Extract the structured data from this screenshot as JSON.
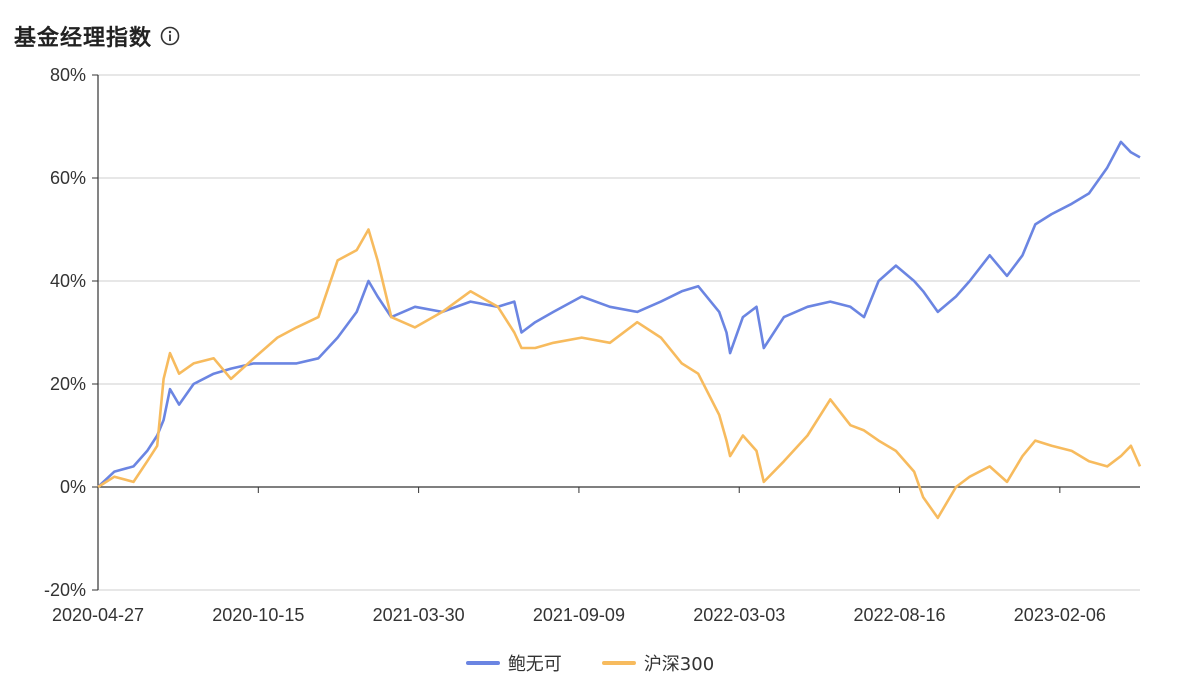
{
  "header": {
    "title": "基金经理指数"
  },
  "colors": {
    "series0": "#6b85e2",
    "series1": "#f7bb5e",
    "grid": "#cfcfcf",
    "axis": "#333333"
  },
  "chart_data": {
    "type": "line",
    "x_labels": [
      "2020-04-27",
      "2020-10-15",
      "2021-03-30",
      "2021-09-09",
      "2022-03-03",
      "2022-08-16",
      "2023-02-06"
    ],
    "y_ticks": [
      "80%",
      "60%",
      "40%",
      "20%",
      "0%",
      "-20%"
    ],
    "ylim": [
      -20,
      80
    ],
    "grid": true,
    "legend_position": "bottom-center",
    "x_domain": [
      "2020-04-27",
      "2023-06-15"
    ],
    "series": [
      {
        "name": "鲍无可",
        "color": "#6b85e2",
        "points": [
          [
            "2020-04-27",
            0
          ],
          [
            "2020-05-15",
            3
          ],
          [
            "2020-06-05",
            4
          ],
          [
            "2020-06-20",
            7
          ],
          [
            "2020-07-01",
            10
          ],
          [
            "2020-07-08",
            13
          ],
          [
            "2020-07-15",
            19
          ],
          [
            "2020-07-25",
            16
          ],
          [
            "2020-08-10",
            20
          ],
          [
            "2020-09-01",
            22
          ],
          [
            "2020-09-20",
            23
          ],
          [
            "2020-10-15",
            24
          ],
          [
            "2020-11-10",
            24
          ],
          [
            "2020-12-01",
            24
          ],
          [
            "2020-12-25",
            25
          ],
          [
            "2021-01-15",
            29
          ],
          [
            "2021-02-05",
            34
          ],
          [
            "2021-02-18",
            40
          ],
          [
            "2021-02-28",
            37
          ],
          [
            "2021-03-15",
            33
          ],
          [
            "2021-04-10",
            35
          ],
          [
            "2021-05-10",
            34
          ],
          [
            "2021-06-10",
            36
          ],
          [
            "2021-07-10",
            35
          ],
          [
            "2021-07-28",
            36
          ],
          [
            "2021-08-05",
            30
          ],
          [
            "2021-08-20",
            32
          ],
          [
            "2021-09-09",
            34
          ],
          [
            "2021-10-10",
            37
          ],
          [
            "2021-11-10",
            35
          ],
          [
            "2021-12-10",
            34
          ],
          [
            "2022-01-05",
            36
          ],
          [
            "2022-01-28",
            38
          ],
          [
            "2022-02-15",
            39
          ],
          [
            "2022-03-10",
            34
          ],
          [
            "2022-03-18",
            30
          ],
          [
            "2022-03-22",
            26
          ],
          [
            "2022-04-05",
            33
          ],
          [
            "2022-04-20",
            35
          ],
          [
            "2022-04-28",
            27
          ],
          [
            "2022-05-20",
            33
          ],
          [
            "2022-06-15",
            35
          ],
          [
            "2022-07-10",
            36
          ],
          [
            "2022-08-01",
            35
          ],
          [
            "2022-08-16",
            33
          ],
          [
            "2022-09-01",
            40
          ],
          [
            "2022-09-20",
            43
          ],
          [
            "2022-10-10",
            40
          ],
          [
            "2022-10-20",
            38
          ],
          [
            "2022-11-05",
            34
          ],
          [
            "2022-11-25",
            37
          ],
          [
            "2022-12-10",
            40
          ],
          [
            "2023-01-01",
            45
          ],
          [
            "2023-01-20",
            41
          ],
          [
            "2023-02-06",
            45
          ],
          [
            "2023-02-20",
            51
          ],
          [
            "2023-03-10",
            53
          ],
          [
            "2023-04-01",
            55
          ],
          [
            "2023-04-20",
            57
          ],
          [
            "2023-05-10",
            62
          ],
          [
            "2023-05-25",
            67
          ],
          [
            "2023-06-05",
            65
          ],
          [
            "2023-06-15",
            64
          ]
        ]
      },
      {
        "name": "沪深300",
        "color": "#f7bb5e",
        "points": [
          [
            "2020-04-27",
            0
          ],
          [
            "2020-05-15",
            2
          ],
          [
            "2020-06-05",
            1
          ],
          [
            "2020-06-20",
            5
          ],
          [
            "2020-07-01",
            8
          ],
          [
            "2020-07-08",
            21
          ],
          [
            "2020-07-15",
            26
          ],
          [
            "2020-07-25",
            22
          ],
          [
            "2020-08-10",
            24
          ],
          [
            "2020-09-01",
            25
          ],
          [
            "2020-09-20",
            21
          ],
          [
            "2020-10-15",
            25
          ],
          [
            "2020-11-10",
            29
          ],
          [
            "2020-12-01",
            31
          ],
          [
            "2020-12-25",
            33
          ],
          [
            "2021-01-15",
            44
          ],
          [
            "2021-02-05",
            46
          ],
          [
            "2021-02-18",
            50
          ],
          [
            "2021-02-28",
            44
          ],
          [
            "2021-03-15",
            33
          ],
          [
            "2021-04-10",
            31
          ],
          [
            "2021-05-10",
            34
          ],
          [
            "2021-06-10",
            38
          ],
          [
            "2021-07-10",
            35
          ],
          [
            "2021-07-28",
            30
          ],
          [
            "2021-08-05",
            27
          ],
          [
            "2021-08-20",
            27
          ],
          [
            "2021-09-09",
            28
          ],
          [
            "2021-10-10",
            29
          ],
          [
            "2021-11-10",
            28
          ],
          [
            "2021-12-10",
            32
          ],
          [
            "2022-01-05",
            29
          ],
          [
            "2022-01-28",
            24
          ],
          [
            "2022-02-15",
            22
          ],
          [
            "2022-03-10",
            14
          ],
          [
            "2022-03-18",
            9
          ],
          [
            "2022-03-22",
            6
          ],
          [
            "2022-04-05",
            10
          ],
          [
            "2022-04-20",
            7
          ],
          [
            "2022-04-28",
            1
          ],
          [
            "2022-05-20",
            5
          ],
          [
            "2022-06-15",
            10
          ],
          [
            "2022-07-10",
            17
          ],
          [
            "2022-08-01",
            12
          ],
          [
            "2022-08-16",
            11
          ],
          [
            "2022-09-01",
            9
          ],
          [
            "2022-09-20",
            7
          ],
          [
            "2022-10-10",
            3
          ],
          [
            "2022-10-20",
            -2
          ],
          [
            "2022-11-05",
            -6
          ],
          [
            "2022-11-25",
            0
          ],
          [
            "2022-12-10",
            2
          ],
          [
            "2023-01-01",
            4
          ],
          [
            "2023-01-20",
            1
          ],
          [
            "2023-02-06",
            6
          ],
          [
            "2023-02-20",
            9
          ],
          [
            "2023-03-10",
            8
          ],
          [
            "2023-04-01",
            7
          ],
          [
            "2023-04-20",
            5
          ],
          [
            "2023-05-10",
            4
          ],
          [
            "2023-05-25",
            6
          ],
          [
            "2023-06-05",
            8
          ],
          [
            "2023-06-15",
            4
          ]
        ]
      }
    ]
  }
}
